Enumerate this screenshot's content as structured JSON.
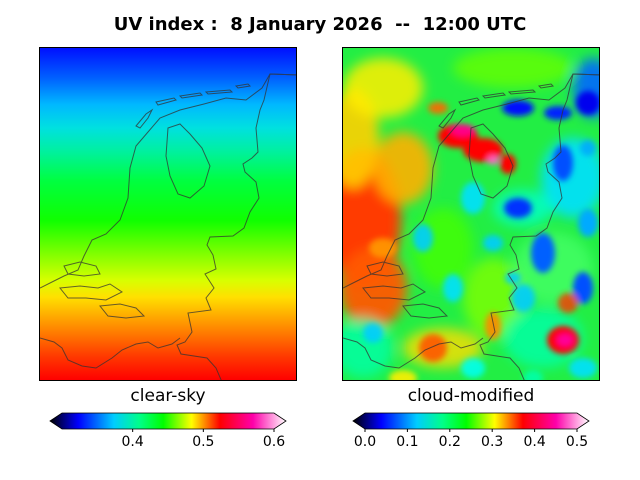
{
  "title": "UV index :  8 January 2026  --  12:00 UTC",
  "panels": {
    "left": {
      "label": "clear-sky"
    },
    "right": {
      "label": "cloud-modified"
    }
  },
  "colorbars": {
    "left": {
      "ticks": [
        "0.4",
        "0.5",
        "0.6"
      ],
      "tick_values": [
        0.4,
        0.5,
        0.6
      ],
      "range": [
        0.3,
        0.6
      ]
    },
    "right": {
      "ticks": [
        "0.0",
        "0.1",
        "0.2",
        "0.3",
        "0.4",
        "0.5"
      ],
      "tick_values": [
        0,
        0.1,
        0.2,
        0.3,
        0.4,
        0.5
      ],
      "range": [
        0,
        0.5
      ]
    }
  },
  "colors": {
    "ramp": [
      "#000000",
      "#0000ff",
      "#00ccff",
      "#00ff88",
      "#00ff00",
      "#ffff00",
      "#ff0000",
      "#ff00aa",
      "#ffffff"
    ]
  }
}
